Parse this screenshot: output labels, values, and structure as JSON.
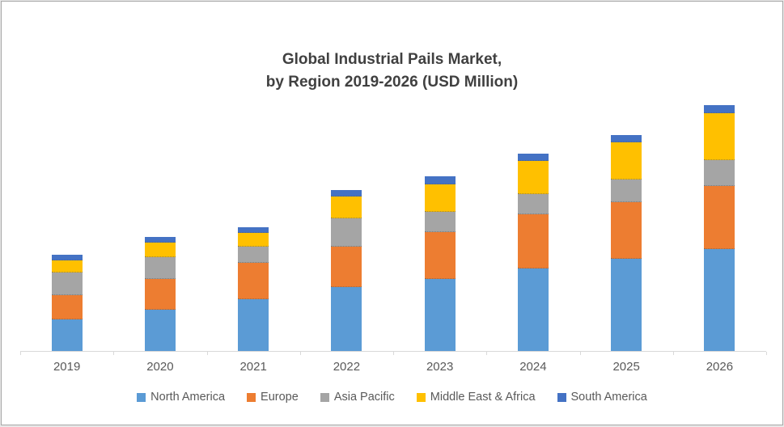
{
  "chart_data": {
    "type": "bar",
    "stacked": true,
    "title": "Global Industrial Pails Market,\nby Region 2019-2026 (USD Million)",
    "title_lines": [
      "Global Industrial Pails Market,",
      "by Region 2019-2026 (USD Million)"
    ],
    "unit": "USD Million",
    "categories": [
      "2019",
      "2020",
      "2021",
      "2022",
      "2023",
      "2024",
      "2025",
      "2026"
    ],
    "series": [
      {
        "name": "North America",
        "color": "#5B9BD5",
        "values": [
          195,
          255,
          320,
          395,
          445,
          510,
          570,
          630
        ]
      },
      {
        "name": "Europe",
        "color": "#ED7D31",
        "values": [
          150,
          190,
          225,
          250,
          290,
          335,
          350,
          390
        ]
      },
      {
        "name": "Asia Pacific",
        "color": "#A5A5A5",
        "values": [
          140,
          135,
          100,
          175,
          125,
          125,
          140,
          160
        ]
      },
      {
        "name": "Middle East & Africa",
        "color": "#FFC000",
        "values": [
          75,
          90,
          85,
          135,
          170,
          205,
          230,
          290
        ]
      },
      {
        "name": "South America",
        "color": "#4472C4",
        "values": [
          35,
          35,
          35,
          40,
          50,
          45,
          45,
          50
        ]
      }
    ],
    "totals": [
      595,
      705,
      765,
      995,
      1080,
      1220,
      1335,
      1520
    ],
    "ylim": [
      0,
      1600
    ],
    "y_axis_visible": false,
    "grid": false,
    "legend_position": "bottom"
  }
}
